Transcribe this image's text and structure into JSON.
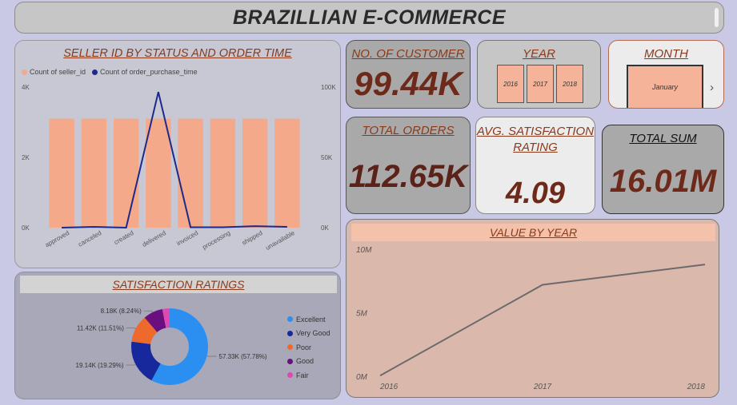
{
  "header": {
    "title": "BRAZILLIAN E-COMMERCE"
  },
  "kpis": {
    "customers": {
      "label": "NO. OF CUSTOMER",
      "value": "99.44K"
    },
    "orders": {
      "label": "TOTAL ORDERS",
      "value": "112.65K"
    },
    "rating": {
      "label": "AVG. SATISFACTION RATING",
      "value": "4.09"
    },
    "sum": {
      "label": "TOTAL SUM",
      "value": "16.01M"
    }
  },
  "filters": {
    "year": {
      "label": "YEAR",
      "options": [
        "2016",
        "2017",
        "2018"
      ]
    },
    "month": {
      "label": "MONTH",
      "selected": "January"
    }
  },
  "colors": {
    "bar": "#f3a98a",
    "line": "#1c2a8c",
    "value_line": "#6b6b6b",
    "accent_text": "#8a3a1a"
  },
  "chart_data": [
    {
      "type": "bar",
      "title": "SELLER ID BY STATUS AND ORDER TIME",
      "categories": [
        "approved",
        "canceled",
        "created",
        "delivered",
        "invoiced",
        "processing",
        "shipped",
        "unavailable"
      ],
      "series": [
        {
          "name": "Count of seller_id",
          "axis": "left",
          "values": [
            3100,
            3100,
            3100,
            3100,
            3100,
            3100,
            3100,
            3100
          ]
        },
        {
          "name": "Count of order_purchase_time",
          "axis": "right",
          "type": "line",
          "values": [
            2,
            600,
            5,
            96500,
            300,
            300,
            1100,
            600
          ]
        }
      ],
      "y_left": {
        "ticks": [
          "0K",
          "2K",
          "4K"
        ],
        "range": [
          0,
          4000
        ]
      },
      "y_right": {
        "ticks": [
          "0K",
          "50K",
          "100K"
        ],
        "range": [
          0,
          100000
        ]
      },
      "legend": "top-left"
    },
    {
      "type": "pie",
      "title": "SATISFACTION RATINGS",
      "donut": true,
      "slices": [
        {
          "name": "Excellent",
          "value": 57.33,
          "label": "57.33K (57.78%)",
          "color": "#2b8ff2"
        },
        {
          "name": "Very Good",
          "value": 19.14,
          "label": "19.14K (19.29%)",
          "color": "#17279c"
        },
        {
          "name": "Poor",
          "value": 11.42,
          "label": "11.42K (11.51%)",
          "color": "#ee6a2c"
        },
        {
          "name": "Good",
          "value": 8.18,
          "label": "8.18K (8.24%)",
          "color": "#6a0f80"
        },
        {
          "name": "Fair",
          "value": 3.2,
          "label": "",
          "color": "#e04ab0"
        }
      ],
      "legend": "right"
    },
    {
      "type": "line",
      "title": "VALUE BY YEAR",
      "x": [
        "2016",
        "2017",
        "2018"
      ],
      "values": [
        50000,
        7200000,
        8800000
      ],
      "y_ticks": [
        "0M",
        "5M",
        "10M"
      ],
      "ylim": [
        0,
        10000000
      ]
    }
  ]
}
